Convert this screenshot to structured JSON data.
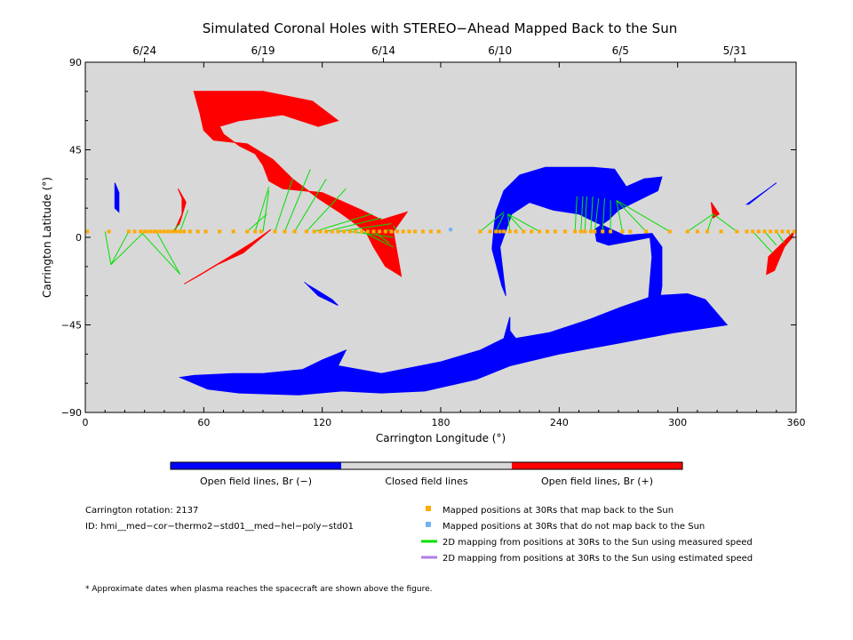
{
  "chart_data": {
    "type": "scatter",
    "title": "Simulated Coronal Holes with STEREO−Ahead Mapped Back to the Sun",
    "xlabel": "Carrington Longitude (°)",
    "ylabel": "Carrington Latitude (°)",
    "xlim": [
      0,
      360
    ],
    "ylim": [
      -90,
      90
    ],
    "x_ticks": [
      0,
      60,
      120,
      180,
      240,
      300,
      360
    ],
    "y_ticks": [
      -90,
      -45,
      0,
      45,
      90
    ],
    "top_axis": {
      "labels": [
        {
          "label": "6/24",
          "lon": 30
        },
        {
          "label": "6/19",
          "lon": 90
        },
        {
          "label": "6/14",
          "lon": 151
        },
        {
          "label": "6/10",
          "lon": 210
        },
        {
          "label": "6/5",
          "lon": 271
        },
        {
          "label": "5/31",
          "lon": 329
        }
      ]
    },
    "colors": {
      "negative": "#0000ff",
      "positive": "#ff0000",
      "closed": "#d8d8d8",
      "mapped": "#ffaa00",
      "unmapped": "#6fb4f0",
      "measured": "#00e000",
      "estimated": "#b07ee8"
    },
    "colorbar": {
      "labels": [
        "Open field lines, Br (−)",
        "Closed field lines",
        "Open field lines, Br (+)"
      ]
    },
    "info": {
      "rotation": "Carrington rotation: 2137",
      "id": "ID: hmi__med−cor−thermo2−std01__med−hel−poly−std01"
    },
    "legend": {
      "placement": "bottom-right",
      "items": [
        {
          "label": "Mapped positions at 30Rs that map back to the Sun",
          "symbol": "square",
          "color": "#ffaa00"
        },
        {
          "label": "Mapped positions at 30Rs that do not map back to the Sun",
          "symbol": "square",
          "color": "#6fb4f0"
        },
        {
          "label": "2D mapping from positions at 30Rs to the Sun using measured speed",
          "symbol": "line",
          "color": "#00e000"
        },
        {
          "label": "2D mapping from positions at 30Rs to the Sun using estimated speed",
          "symbol": "line",
          "color": "#b07ee8"
        }
      ]
    },
    "footnote": "* Approximate dates when plasma reaches the spacecraft are shown above the figure.",
    "coronal_holes": [
      {
        "polarity": "positive",
        "outline": [
          [
            55,
            75
          ],
          [
            90,
            75
          ],
          [
            115,
            70
          ],
          [
            128,
            60
          ],
          [
            118,
            57
          ],
          [
            100,
            63
          ],
          [
            78,
            60
          ],
          [
            68,
            57
          ],
          [
            70,
            53
          ],
          [
            78,
            47
          ],
          [
            86,
            43
          ],
          [
            90,
            37
          ],
          [
            93,
            29
          ],
          [
            100,
            25
          ],
          [
            120,
            23
          ],
          [
            140,
            14
          ],
          [
            150,
            9
          ],
          [
            163,
            13
          ],
          [
            156,
            3
          ],
          [
            160,
            -20
          ],
          [
            152,
            -15
          ],
          [
            146,
            -5
          ],
          [
            142,
            3
          ],
          [
            130,
            12
          ],
          [
            118,
            20
          ],
          [
            105,
            30
          ],
          [
            95,
            40
          ],
          [
            82,
            48
          ],
          [
            65,
            50
          ],
          [
            60,
            55
          ],
          [
            58,
            64
          ]
        ]
      },
      {
        "polarity": "positive",
        "outline": [
          [
            94,
            4
          ],
          [
            80,
            -8
          ],
          [
            67,
            -14
          ],
          [
            57,
            -20
          ],
          [
            50,
            -24
          ],
          [
            60,
            -18
          ],
          [
            73,
            -10
          ],
          [
            84,
            -3
          ]
        ]
      },
      {
        "polarity": "positive",
        "outline": [
          [
            47,
            25
          ],
          [
            51,
            18
          ],
          [
            48,
            8
          ],
          [
            45,
            3
          ],
          [
            49,
            12
          ],
          [
            49,
            20
          ]
        ]
      },
      {
        "polarity": "positive",
        "outline": [
          [
            359,
            3
          ],
          [
            353,
            -3
          ],
          [
            346,
            -10
          ],
          [
            345,
            -19
          ],
          [
            349,
            -17
          ],
          [
            354,
            -5
          ],
          [
            358,
            0
          ]
        ]
      },
      {
        "polarity": "positive",
        "outline": [
          [
            317,
            18
          ],
          [
            321,
            12
          ],
          [
            318,
            10
          ]
        ]
      },
      {
        "polarity": "negative",
        "outline": [
          [
            48,
            -72
          ],
          [
            62,
            -78
          ],
          [
            78,
            -80
          ],
          [
            108,
            -81
          ],
          [
            130,
            -79
          ],
          [
            150,
            -80
          ],
          [
            172,
            -79
          ],
          [
            198,
            -73
          ],
          [
            215,
            -66
          ],
          [
            240,
            -60
          ],
          [
            272,
            -54
          ],
          [
            298,
            -49
          ],
          [
            325,
            -45
          ],
          [
            314,
            -32
          ],
          [
            305,
            -29
          ],
          [
            288,
            -30
          ],
          [
            271,
            -36
          ],
          [
            256,
            -42
          ],
          [
            235,
            -49
          ],
          [
            218,
            -52
          ],
          [
            215,
            -48
          ],
          [
            215,
            -41
          ],
          [
            212,
            -52
          ],
          [
            200,
            -58
          ],
          [
            180,
            -64
          ],
          [
            150,
            -70
          ],
          [
            128,
            -66
          ],
          [
            132,
            -58
          ],
          [
            120,
            -63
          ],
          [
            110,
            -68
          ],
          [
            90,
            -70
          ],
          [
            75,
            -70
          ],
          [
            55,
            -71
          ]
        ]
      },
      {
        "polarity": "negative",
        "outline": [
          [
            211,
            -25
          ],
          [
            206,
            -6
          ],
          [
            207,
            5
          ],
          [
            208,
            13
          ],
          [
            212,
            24
          ],
          [
            220,
            32
          ],
          [
            233,
            36
          ],
          [
            257,
            36
          ],
          [
            268,
            35
          ],
          [
            274,
            26
          ],
          [
            283,
            30
          ],
          [
            292,
            31
          ],
          [
            290,
            24
          ],
          [
            282,
            20
          ],
          [
            270,
            14
          ],
          [
            265,
            9
          ],
          [
            258,
            4
          ],
          [
            259,
            -2
          ],
          [
            265,
            -4
          ],
          [
            276,
            -2
          ],
          [
            286,
            0
          ],
          [
            287,
            -10
          ],
          [
            285,
            -35
          ],
          [
            290,
            -38
          ],
          [
            292,
            -25
          ],
          [
            292,
            -5
          ],
          [
            287,
            2
          ],
          [
            273,
            1
          ],
          [
            258,
            8
          ],
          [
            250,
            12
          ],
          [
            237,
            14
          ],
          [
            225,
            18
          ],
          [
            216,
            12
          ],
          [
            210,
            -5
          ],
          [
            212,
            -22
          ],
          [
            213,
            -30
          ]
        ]
      },
      {
        "polarity": "negative",
        "outline": [
          [
            249,
            27
          ],
          [
            238,
            27
          ],
          [
            229,
            20
          ],
          [
            234,
            17
          ],
          [
            244,
            16
          ],
          [
            255,
            18
          ],
          [
            260,
            20
          ]
        ]
      },
      {
        "polarity": "negative",
        "outline": [
          [
            335,
            17
          ],
          [
            346,
            25
          ],
          [
            350,
            28
          ],
          [
            346,
            25
          ],
          [
            336,
            17
          ]
        ]
      },
      {
        "polarity": "negative",
        "outline": [
          [
            111,
            -23
          ],
          [
            118,
            -30
          ],
          [
            128,
            -35
          ],
          [
            125,
            -32
          ],
          [
            117,
            -27
          ],
          [
            112,
            -24
          ]
        ]
      },
      {
        "polarity": "negative",
        "outline": [
          [
            15,
            28
          ],
          [
            17,
            23
          ],
          [
            17,
            13
          ],
          [
            15,
            15
          ]
        ]
      }
    ],
    "mapped_points": {
      "lat": 3,
      "lon": [
        1,
        12,
        22,
        25,
        28,
        30,
        31,
        33,
        35,
        36,
        38,
        40,
        42,
        44,
        46,
        48,
        50,
        53,
        57,
        61,
        68,
        75,
        82,
        86,
        89,
        96,
        101,
        106,
        112,
        116,
        119,
        122,
        125,
        128,
        131,
        134,
        137,
        140,
        143,
        146,
        149,
        152,
        155,
        158,
        161,
        164,
        167,
        171,
        175,
        179,
        200,
        205,
        208,
        210,
        212,
        215,
        218,
        222,
        226,
        230,
        234,
        238,
        243,
        248,
        251,
        253,
        256,
        258,
        262,
        266,
        272,
        276,
        284,
        296,
        305,
        310,
        315,
        322,
        330,
        335,
        338,
        341,
        344,
        347,
        350,
        353,
        356,
        359
      ]
    },
    "unmapped_points": [
      {
        "lon": 185,
        "lat": 4
      }
    ],
    "mapping_lines": [
      {
        "from": [
          10,
          3
        ],
        "to": [
          13,
          -14
        ]
      },
      {
        "from": [
          22,
          3
        ],
        "to": [
          13,
          -14
        ]
      },
      {
        "from": [
          30,
          3
        ],
        "to": [
          13,
          -14
        ]
      },
      {
        "from": [
          28,
          3
        ],
        "to": [
          48,
          -19
        ]
      },
      {
        "from": [
          36,
          3
        ],
        "to": [
          48,
          -19
        ]
      },
      {
        "from": [
          44,
          3
        ],
        "to": [
          48,
          7
        ]
      },
      {
        "from": [
          48,
          3
        ],
        "to": [
          52,
          14
        ]
      },
      {
        "from": [
          82,
          3
        ],
        "to": [
          92,
          12
        ]
      },
      {
        "from": [
          86,
          3
        ],
        "to": [
          93,
          26
        ]
      },
      {
        "from": [
          90,
          3
        ],
        "to": [
          93,
          24
        ]
      },
      {
        "from": [
          96,
          3
        ],
        "to": [
          105,
          30
        ]
      },
      {
        "from": [
          101,
          3
        ],
        "to": [
          114,
          35
        ]
      },
      {
        "from": [
          106,
          3
        ],
        "to": [
          122,
          30
        ]
      },
      {
        "from": [
          112,
          3
        ],
        "to": [
          132,
          25
        ]
      },
      {
        "from": [
          116,
          3
        ],
        "to": [
          145,
          12
        ]
      },
      {
        "from": [
          122,
          3
        ],
        "to": [
          150,
          10
        ]
      },
      {
        "from": [
          128,
          3
        ],
        "to": [
          155,
          7
        ]
      },
      {
        "from": [
          134,
          3
        ],
        "to": [
          156,
          0
        ]
      },
      {
        "from": [
          140,
          3
        ],
        "to": [
          156,
          -5
        ]
      },
      {
        "from": [
          146,
          3
        ],
        "to": [
          154,
          -3
        ]
      },
      {
        "from": [
          152,
          3
        ],
        "to": [
          154,
          4
        ]
      },
      {
        "from": [
          158,
          3
        ],
        "to": [
          156,
          6
        ]
      },
      {
        "from": [
          200,
          3
        ],
        "to": [
          212,
          13
        ]
      },
      {
        "from": [
          208,
          3
        ],
        "to": [
          212,
          12
        ]
      },
      {
        "from": [
          215,
          3
        ],
        "to": [
          214,
          12
        ]
      },
      {
        "from": [
          222,
          3
        ],
        "to": [
          214,
          12
        ]
      },
      {
        "from": [
          230,
          3
        ],
        "to": [
          214,
          12
        ]
      },
      {
        "from": [
          248,
          3
        ],
        "to": [
          249,
          21
        ]
      },
      {
        "from": [
          251,
          3
        ],
        "to": [
          252,
          21
        ]
      },
      {
        "from": [
          253,
          3
        ],
        "to": [
          254,
          21
        ]
      },
      {
        "from": [
          256,
          3
        ],
        "to": [
          257,
          21
        ]
      },
      {
        "from": [
          258,
          3
        ],
        "to": [
          260,
          20
        ]
      },
      {
        "from": [
          262,
          3
        ],
        "to": [
          263,
          20
        ]
      },
      {
        "from": [
          266,
          3
        ],
        "to": [
          266,
          19
        ]
      },
      {
        "from": [
          272,
          3
        ],
        "to": [
          269,
          19
        ]
      },
      {
        "from": [
          284,
          3
        ],
        "to": [
          269,
          19
        ]
      },
      {
        "from": [
          296,
          3
        ],
        "to": [
          269,
          19
        ]
      },
      {
        "from": [
          305,
          3
        ],
        "to": [
          318,
          12
        ]
      },
      {
        "from": [
          315,
          3
        ],
        "to": [
          318,
          12
        ]
      },
      {
        "from": [
          330,
          3
        ],
        "to": [
          318,
          12
        ]
      },
      {
        "from": [
          338,
          3
        ],
        "to": [
          348,
          -8
        ]
      },
      {
        "from": [
          344,
          3
        ],
        "to": [
          350,
          -4
        ]
      },
      {
        "from": [
          350,
          3
        ],
        "to": [
          354,
          -3
        ]
      },
      {
        "from": [
          356,
          3
        ],
        "to": [
          357,
          1
        ]
      }
    ]
  }
}
